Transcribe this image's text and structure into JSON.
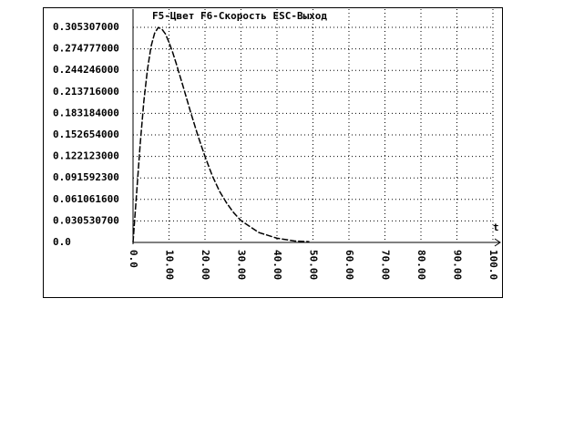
{
  "chart_data": {
    "type": "line",
    "title": "F5-Цвет  F6-Скорость  ESC-Выход",
    "x_label": "t",
    "x": [
      0,
      1,
      2,
      3,
      4,
      5,
      6,
      7,
      8,
      9,
      10,
      11,
      12,
      14,
      16,
      18,
      20,
      22,
      24,
      26,
      28,
      30,
      35,
      40,
      45,
      49
    ],
    "values": [
      0,
      0.07,
      0.14,
      0.2,
      0.245,
      0.278,
      0.297,
      0.305,
      0.303,
      0.296,
      0.284,
      0.27,
      0.254,
      0.22,
      0.185,
      0.152,
      0.122,
      0.095,
      0.073,
      0.056,
      0.042,
      0.031,
      0.014,
      0.006,
      0.002,
      0.001
    ],
    "color": "#000000",
    "xlim": [
      0,
      100
    ],
    "xticks": [
      {
        "value": 0,
        "label": "0.0"
      },
      {
        "value": 10,
        "label": "10.00"
      },
      {
        "value": 20,
        "label": "20.00"
      },
      {
        "value": 30,
        "label": "30.00"
      },
      {
        "value": 40,
        "label": "40.00"
      },
      {
        "value": 50,
        "label": "50.00"
      },
      {
        "value": 60,
        "label": "60.00"
      },
      {
        "value": 70,
        "label": "70.00"
      },
      {
        "value": 80,
        "label": "80.00"
      },
      {
        "value": 90,
        "label": "90.00"
      },
      {
        "value": 100,
        "label": "100.0"
      }
    ],
    "ylim": [
      0,
      0.305307
    ],
    "yticks": [
      {
        "value": 0,
        "label": "0.0"
      },
      {
        "value": 0.0305307,
        "label": "0.030530700"
      },
      {
        "value": 0.0610616,
        "label": "0.061061600"
      },
      {
        "value": 0.0915923,
        "label": "0.091592300"
      },
      {
        "value": 0.122123,
        "label": "0.122123000"
      },
      {
        "value": 0.152654,
        "label": "0.152654000"
      },
      {
        "value": 0.183184,
        "label": "0.183184000"
      },
      {
        "value": 0.213716,
        "label": "0.213716000"
      },
      {
        "value": 0.244246,
        "label": "0.244246000"
      },
      {
        "value": 0.274777,
        "label": "0.274777000"
      },
      {
        "value": 0.305307,
        "label": "0.305307000"
      }
    ],
    "grid": true
  }
}
